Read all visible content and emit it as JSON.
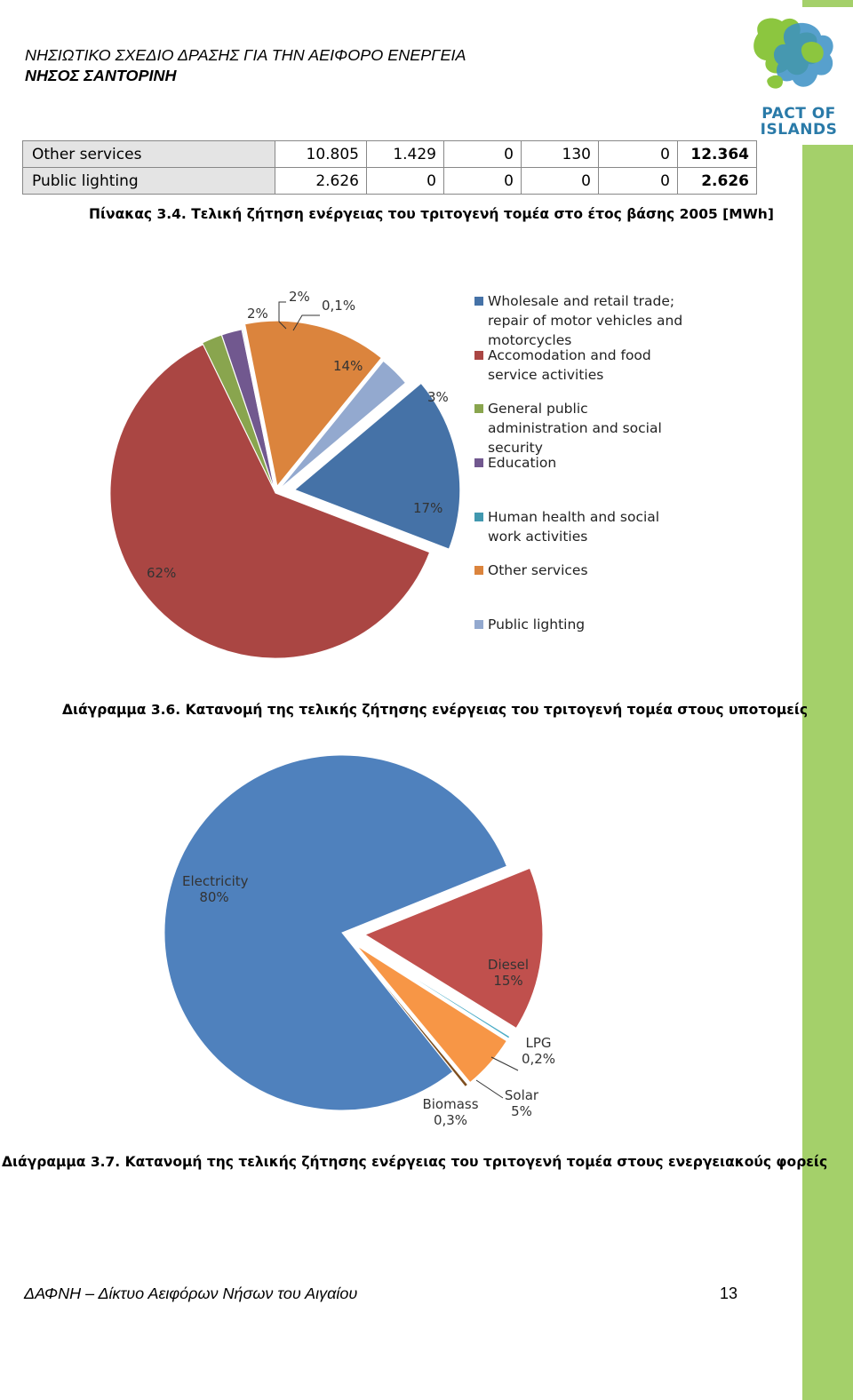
{
  "header": {
    "line1": "ΝΗΣΙΩΤΙΚΟ ΣΧΕΔΙΟ ΔΡΑΣΗΣ ΓΙΑ ΤΗΝ ΑΕΙΦΟΡΟ ΕΝΕΡΓΕΙΑ",
    "line2": "ΝΗΣΟΣ ΣΑΝΤΟΡΙΝΗ"
  },
  "logo": {
    "line1": "PACT OF",
    "line2": "ISLANDS"
  },
  "table": {
    "rows": [
      {
        "label": "Other services",
        "cells": [
          "10.805",
          "1.429",
          "0",
          "130",
          "0"
        ],
        "total": "12.364"
      },
      {
        "label": "Public lighting",
        "cells": [
          "2.626",
          "0",
          "0",
          "0",
          "0"
        ],
        "total": "2.626"
      }
    ],
    "caption": "Πίνακας 3.4. Τελική ζήτηση ενέργειας του τριτογενή τομέα στο έτος βάσης 2005 [MWh]"
  },
  "chart_data": [
    {
      "type": "pie",
      "categories": [
        "Wholesale and retail trade; repair of motor vehicles and motorcycles",
        "Accomodation and food service activities",
        "General public administration and social security",
        "Education",
        "Human health and social work activities",
        "Other services",
        "Public lighting"
      ],
      "values": [
        17,
        62,
        2,
        2,
        0.1,
        14,
        3
      ],
      "data_labels": [
        "17%",
        "62%",
        "2%",
        "2%",
        "0,1%",
        "14%",
        "3%"
      ],
      "colors": [
        "#4572a7",
        "#aa4643",
        "#89a54e",
        "#71588f",
        "#4198af",
        "#db843d",
        "#93a9cf"
      ],
      "legend_position": "right",
      "caption": "Διάγραμμα 3.6. Κατανομή της τελικής ζήτησης ενέργειας του τριτογενή τομέα στους υποτομείς"
    },
    {
      "type": "pie",
      "categories": [
        "Electricity",
        "Diesel",
        "LPG",
        "Solar",
        "Biomass"
      ],
      "values": [
        80,
        15,
        0.2,
        5,
        0.3
      ],
      "data_labels": [
        "80%",
        "15%",
        "0,2%",
        "5%",
        "0,3%"
      ],
      "colors": [
        "#4f81bd",
        "#c0504d",
        "#4bacc6",
        "#f79646",
        "#7f4f1f"
      ],
      "legend_position": "none",
      "caption": "Διάγραμμα 3.7. Κατανομή της τελικής ζήτησης ενέργειας του τριτογενή τομέα στους ενεργειακούς φορείς"
    }
  ],
  "footer": {
    "text": "ΔΑΦΝΗ – Δίκτυο Αειφόρων Νήσων του Αιγαίου",
    "page": "13"
  }
}
